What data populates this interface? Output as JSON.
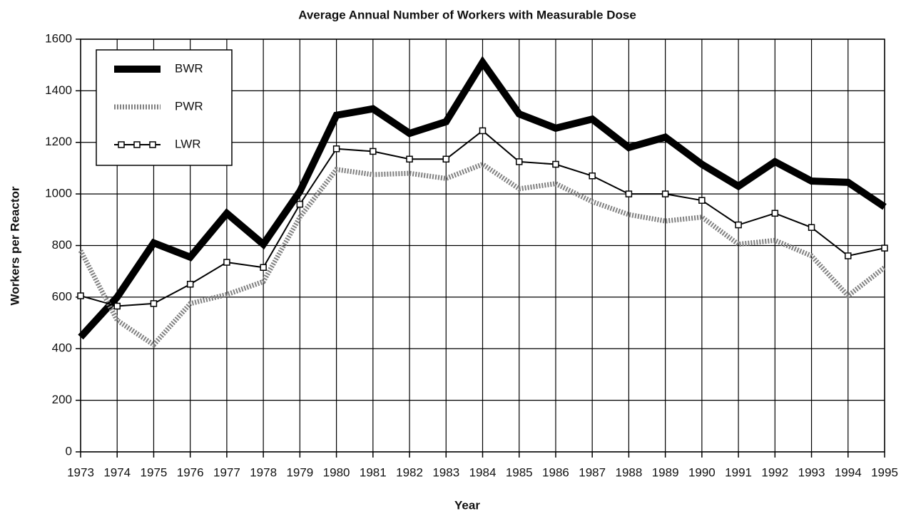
{
  "chart_data": {
    "type": "line",
    "title": "Average Annual Number of Workers with Measurable Dose",
    "x_label": "Year",
    "y_label": "Workers per Reactor",
    "x": [
      1973,
      1974,
      1975,
      1976,
      1977,
      1978,
      1979,
      1980,
      1981,
      1982,
      1983,
      1984,
      1985,
      1986,
      1987,
      1988,
      1989,
      1990,
      1991,
      1992,
      1993,
      1994,
      1995
    ],
    "series": [
      {
        "name": "BWR",
        "color": "#000000",
        "values": [
          445,
          600,
          810,
          755,
          925,
          805,
          1010,
          1305,
          1330,
          1235,
          1280,
          1510,
          1310,
          1255,
          1290,
          1180,
          1220,
          1115,
          1030,
          1125,
          1050,
          1045,
          950
        ]
      },
      {
        "name": "PWR",
        "color": "#808080",
        "values": [
          780,
          510,
          415,
          575,
          610,
          660,
          910,
          1095,
          1075,
          1080,
          1060,
          1115,
          1020,
          1040,
          970,
          920,
          895,
          910,
          805,
          820,
          760,
          605,
          715
        ]
      },
      {
        "name": "LWR",
        "color": "#000000",
        "values": [
          605,
          565,
          575,
          650,
          735,
          715,
          960,
          1175,
          1165,
          1135,
          1135,
          1245,
          1125,
          1115,
          1070,
          1000,
          1000,
          975,
          880,
          925,
          870,
          760,
          790
        ]
      }
    ],
    "xlim": [
      1973,
      1995
    ],
    "xticks": [
      1973,
      1974,
      1975,
      1976,
      1977,
      1978,
      1979,
      1980,
      1981,
      1982,
      1983,
      1984,
      1985,
      1986,
      1987,
      1988,
      1989,
      1990,
      1991,
      1992,
      1993,
      1994,
      1995
    ],
    "ylim": [
      0,
      1600
    ],
    "yticks": [
      0,
      200,
      400,
      600,
      800,
      1000,
      1200,
      1400,
      1600
    ],
    "grid": true,
    "legend": "upper left"
  }
}
